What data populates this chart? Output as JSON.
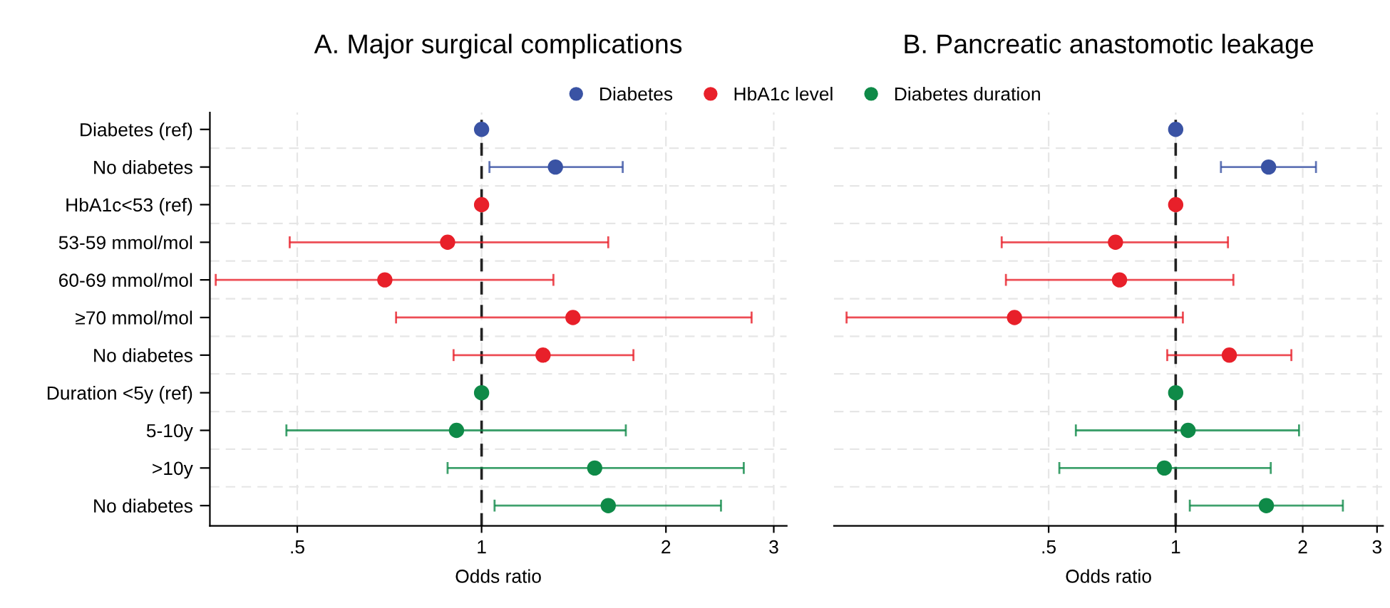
{
  "chart_data": [
    {
      "type": "scatter",
      "orientation": "horizontal",
      "title": "A. Major surgical complications",
      "xlabel": "Odds ratio",
      "categories": [
        "Diabetes (ref)",
        "No diabetes",
        "HbA1c<53 (ref)",
        "53-59 mmol/mol",
        "60-69 mmol/mol",
        "≥70 mmol/mol",
        "No diabetes",
        "Duration <5y (ref)",
        "5-10y",
        ">10y",
        "No diabetes"
      ],
      "log": "x",
      "xlim": [
        0.36,
        3.15
      ],
      "xticks": [
        {
          "value": 0.5,
          "label": ".5"
        },
        1,
        2,
        3
      ],
      "grid": true,
      "legend": "top",
      "marker": "circle",
      "ref_lines": [
        {
          "axis": "x",
          "value": 1,
          "color": "#222222",
          "line_style": "dashed"
        }
      ],
      "series": [
        {
          "name": "Diabetes",
          "color": "#3a53a4",
          "values": [
            1,
            1.32,
            null,
            null,
            null,
            null,
            null,
            null,
            null,
            null,
            null
          ],
          "errors": [
            null,
            [
              1.03,
              1.7
            ],
            null,
            null,
            null,
            null,
            null,
            null,
            null,
            null,
            null
          ]
        },
        {
          "name": "HbA1c level",
          "color": "#e8202a",
          "values": [
            null,
            null,
            1,
            0.88,
            0.695,
            1.41,
            1.26,
            null,
            null,
            null,
            null
          ],
          "errors": [
            null,
            null,
            null,
            [
              0.486,
              1.61
            ],
            [
              0.368,
              1.31
            ],
            [
              0.725,
              2.76
            ],
            [
              0.9,
              1.77
            ],
            null,
            null,
            null,
            null
          ]
        },
        {
          "name": "Diabetes duration",
          "color": "#0f8a48",
          "values": [
            null,
            null,
            null,
            null,
            null,
            null,
            null,
            1,
            0.91,
            1.53,
            1.61
          ],
          "errors": [
            null,
            null,
            null,
            null,
            null,
            null,
            null,
            null,
            [
              0.48,
              1.72
            ],
            [
              0.88,
              2.68
            ],
            [
              1.05,
              2.46
            ]
          ]
        }
      ]
    },
    {
      "type": "scatter",
      "orientation": "horizontal",
      "title": "B. Pancreatic anastomotic leakage",
      "xlabel": "Odds ratio",
      "categories": [
        null,
        null,
        null,
        null,
        null,
        null,
        null,
        null,
        null,
        null,
        null
      ],
      "tick_labels": "x",
      "log": "x",
      "xlim": [
        0.155,
        3.1
      ],
      "xticks": [
        {
          "value": 0.5,
          "label": ".5"
        },
        1,
        2,
        3
      ],
      "grid": true,
      "marker": "circle",
      "ref_lines": [
        {
          "axis": "x",
          "value": 1,
          "color": "#222222",
          "line_style": "dashed"
        }
      ],
      "series": [
        {
          "color": "#3a53a4",
          "values": [
            1,
            1.66,
            null,
            null,
            null,
            null,
            null,
            null,
            null,
            null,
            null
          ],
          "errors": [
            null,
            [
              1.28,
              2.15
            ],
            null,
            null,
            null,
            null,
            null,
            null,
            null,
            null,
            null
          ]
        },
        {
          "color": "#e8202a",
          "values": [
            null,
            null,
            1,
            0.72,
            0.736,
            0.415,
            1.34,
            null,
            null,
            null,
            null
          ],
          "errors": [
            null,
            null,
            null,
            [
              0.387,
              1.33
            ],
            [
              0.396,
              1.37
            ],
            [
              0.166,
              1.04
            ],
            [
              0.955,
              1.88
            ],
            null,
            null,
            null,
            null
          ]
        },
        {
          "color": "#0f8a48",
          "values": [
            null,
            null,
            null,
            null,
            null,
            null,
            null,
            1,
            1.07,
            0.94,
            1.64
          ],
          "errors": [
            null,
            null,
            null,
            null,
            null,
            null,
            null,
            null,
            [
              0.58,
              1.96
            ],
            [
              0.53,
              1.68
            ],
            [
              1.08,
              2.49
            ]
          ]
        }
      ]
    }
  ]
}
